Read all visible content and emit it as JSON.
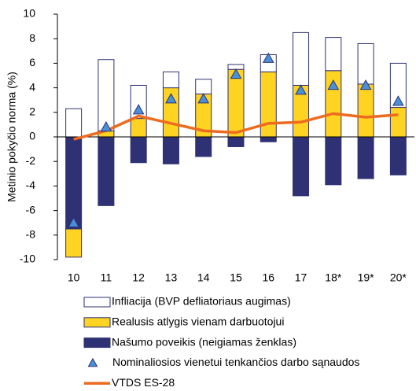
{
  "chart_data": {
    "type": "stacked-bar-line",
    "ylabel": "Metinio pokyčio norma (%)",
    "categories": [
      "10",
      "11",
      "12",
      "13",
      "14",
      "15",
      "16",
      "17",
      "18*",
      "19*",
      "20*"
    ],
    "series": [
      {
        "name": "Infliacija (BVP defliatoriaus augimas)",
        "kind": "bar",
        "color": "#ffffff",
        "values": [
          2.3,
          5.8,
          2.7,
          1.3,
          1.2,
          0.4,
          1.4,
          4.3,
          2.7,
          3.3,
          3.6
        ]
      },
      {
        "name": "Realusis atlygis vienam darbuotojui",
        "kind": "bar",
        "color": "#ffd321",
        "values": [
          -2.3,
          0.5,
          1.5,
          4.0,
          3.5,
          5.5,
          5.3,
          4.2,
          5.4,
          4.3,
          2.4
        ]
      },
      {
        "name": "Našumo poveikis (neigiamas ženklas)",
        "kind": "bar",
        "color": "#2e3274",
        "values": [
          -7.5,
          -5.6,
          -2.1,
          -2.2,
          -1.6,
          -0.8,
          -0.4,
          -4.8,
          -3.9,
          -3.4,
          -3.1
        ]
      },
      {
        "name": "Nominaliosios vienetui tenkančios darbo sąnaudos",
        "kind": "marker",
        "color": "#4a90d9",
        "values": [
          -7.0,
          0.8,
          2.2,
          3.1,
          3.1,
          5.1,
          6.4,
          3.8,
          4.2,
          4.2,
          2.9
        ]
      },
      {
        "name": "VTDS ES-28",
        "kind": "line",
        "color": "#ee6a1e",
        "values": [
          -0.2,
          0.5,
          1.7,
          1.1,
          0.5,
          0.35,
          1.1,
          1.2,
          1.9,
          1.6,
          1.8
        ]
      }
    ],
    "ylim": [
      -10,
      10
    ],
    "yticks": [
      -10,
      -8,
      -6,
      -4,
      -2,
      0,
      2,
      4,
      6,
      8,
      10
    ]
  }
}
